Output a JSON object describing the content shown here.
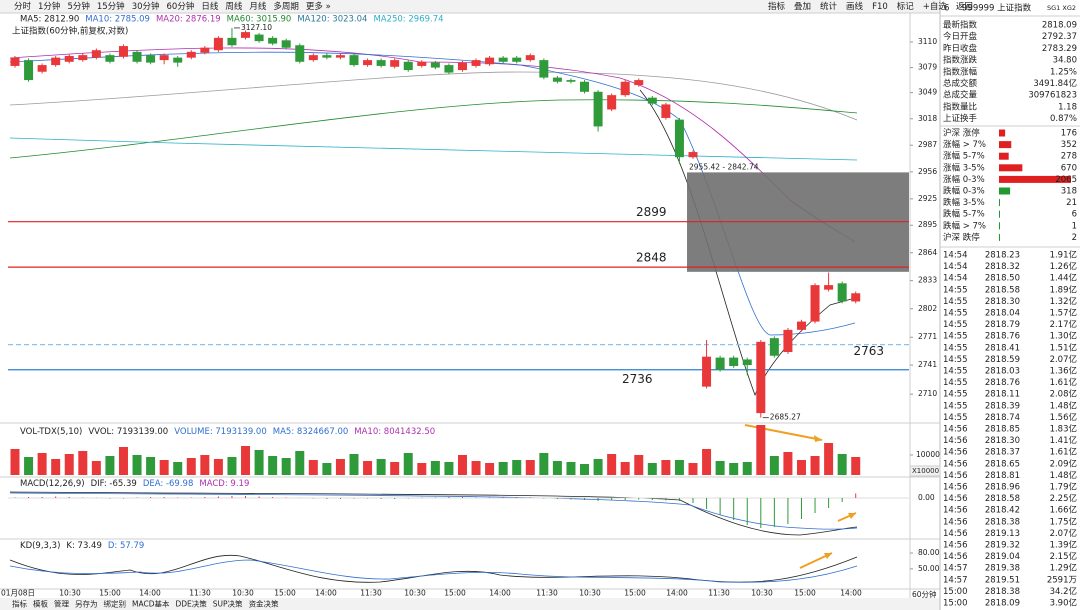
{
  "toolbar": {
    "periods": [
      "分时",
      "1分钟",
      "5分钟",
      "15分钟",
      "30分钟",
      "60分钟",
      "日线",
      "周线",
      "月线",
      "多周期",
      "更多 »"
    ],
    "selected_index": 5,
    "tools": [
      "指标",
      "叠加",
      "统计",
      "画线",
      "F10",
      "标记",
      "+自选",
      "返回"
    ]
  },
  "chart": {
    "ma_header": [
      {
        "text": "MA5: 2812.90",
        "color": "#222222"
      },
      {
        "text": "MA10: 2785.09",
        "color": "#2f6fd0"
      },
      {
        "text": "MA20: 2876.19",
        "color": "#b02fb0"
      },
      {
        "text": "MA60: 3015.90",
        "color": "#1f8a2e"
      },
      {
        "text": "MA120: 3023.04",
        "color": "#2a7a9a"
      },
      {
        "text": "MA250: 2969.74",
        "color": "#2ab0c8"
      }
    ],
    "title": "上证指数(60分钟,前复权,对数)",
    "price_axis": {
      "ylim": [
        2670,
        3140
      ],
      "log": true,
      "ticks": [
        3110,
        3079,
        3049,
        3018,
        2987,
        2956,
        2925,
        2895,
        2864,
        2833,
        2802,
        2771,
        2741,
        2710
      ]
    },
    "levels": [
      {
        "value": 2899,
        "line_color": "#e02020",
        "label_color": "#f08c30",
        "dashed": false
      },
      {
        "value": 2848,
        "line_color": "#e02020",
        "label_color": "#f08c30",
        "dashed": false
      },
      {
        "value": 2763,
        "line_color": "#8cc4ee",
        "label_color": "#3a8fd8",
        "dashed": true
      },
      {
        "value": 2736,
        "line_color": "#2f7fd0",
        "label_color": "#f08c30",
        "dashed": false
      }
    ],
    "range_box": {
      "high": 2955.42,
      "low": 2842.74,
      "label": "2955.42 - 2842.74"
    },
    "max_label": "3127.10",
    "min_label": "2685.27",
    "up_color": "#e8383a",
    "down_color": "#2f9a3a",
    "candles": [
      [
        3081,
        3093,
        3079,
        3091
      ],
      [
        3088,
        3090,
        3062,
        3064
      ],
      [
        3074,
        3084,
        3072,
        3082
      ],
      [
        3082,
        3093,
        3080,
        3091
      ],
      [
        3086,
        3095,
        3084,
        3093
      ],
      [
        3088,
        3096,
        3086,
        3094
      ],
      [
        3091,
        3102,
        3089,
        3100
      ],
      [
        3094,
        3096,
        3084,
        3086
      ],
      [
        3092,
        3107,
        3090,
        3105
      ],
      [
        3098,
        3100,
        3084,
        3086
      ],
      [
        3094,
        3096,
        3083,
        3085
      ],
      [
        3088,
        3096,
        3083,
        3094
      ],
      [
        3091,
        3093,
        3080,
        3085
      ],
      [
        3091,
        3100,
        3089,
        3098
      ],
      [
        3097,
        3105,
        3095,
        3103
      ],
      [
        3100,
        3117,
        3098,
        3115
      ],
      [
        3115,
        3127.1,
        3104,
        3106
      ],
      [
        3115,
        3124,
        3113,
        3122
      ],
      [
        3119,
        3121,
        3109,
        3111
      ],
      [
        3115,
        3117,
        3106,
        3108
      ],
      [
        3112,
        3114,
        3101,
        3103
      ],
      [
        3106,
        3108,
        3084,
        3086
      ],
      [
        3088,
        3096,
        3086,
        3094
      ],
      [
        3094,
        3096,
        3089,
        3091
      ],
      [
        3091,
        3096,
        3089,
        3094
      ],
      [
        3094,
        3096,
        3080,
        3082
      ],
      [
        3082,
        3090,
        3080,
        3088
      ],
      [
        3088,
        3090,
        3079,
        3081
      ],
      [
        3080,
        3090,
        3078,
        3088
      ],
      [
        3086,
        3088,
        3074,
        3076
      ],
      [
        3081,
        3088,
        3079,
        3086
      ],
      [
        3085,
        3087,
        3077,
        3079
      ],
      [
        3082,
        3084,
        3071,
        3073
      ],
      [
        3076,
        3087,
        3074,
        3085
      ],
      [
        3081,
        3090,
        3079,
        3088
      ],
      [
        3083,
        3093,
        3081,
        3091
      ],
      [
        3091,
        3093,
        3084,
        3086
      ],
      [
        3091,
        3093,
        3084,
        3086
      ],
      [
        3088,
        3096,
        3086,
        3094
      ],
      [
        3088,
        3090,
        3065,
        3067
      ],
      [
        3067,
        3069,
        3060,
        3062
      ],
      [
        3064,
        3066,
        3060,
        3062
      ],
      [
        3062,
        3064,
        3048,
        3050
      ],
      [
        3050,
        3052,
        3003,
        3009
      ],
      [
        3029,
        3048,
        3027,
        3046
      ],
      [
        3046,
        3064,
        3044,
        3062
      ],
      [
        3058,
        3066,
        3056,
        3064
      ],
      [
        3043,
        3045,
        3034,
        3036
      ],
      [
        3019,
        3037,
        3017,
        3035
      ],
      [
        3017,
        3019,
        2965,
        2973
      ],
      [
        2973,
        2981,
        2971,
        2979
      ],
      [
        2718,
        2768,
        2716,
        2750
      ],
      [
        2749,
        2751,
        2734,
        2736
      ],
      [
        2749,
        2751,
        2738,
        2740
      ],
      [
        2747,
        2749,
        2730,
        2741
      ],
      [
        2690,
        2768,
        2685.27,
        2766
      ],
      [
        2770,
        2772,
        2749,
        2751
      ],
      [
        2755,
        2781,
        2753,
        2779
      ],
      [
        2779,
        2790,
        2777,
        2788
      ],
      [
        2788,
        2830,
        2786,
        2828
      ],
      [
        2823,
        2842,
        2821,
        2828
      ],
      [
        2830,
        2832,
        2808,
        2810
      ],
      [
        2810,
        2821,
        2808,
        2819
      ]
    ],
    "x_labels": [
      "01月08日",
      "10:30",
      "15:00",
      "14:00",
      "11:30",
      "10:30",
      "15:00",
      "14:00",
      "11:30",
      "10:30",
      "15:00",
      "14:00",
      "11:30",
      "10:30",
      "15:00",
      "14:00",
      "11:30",
      "10:30",
      "15:00",
      "14:00"
    ]
  },
  "volume": {
    "header": [
      {
        "text": "VOL-TDX(5,10)",
        "color": "#222222"
      },
      {
        "text": "VVOL: 7193139.00",
        "color": "#222222"
      },
      {
        "text": "VOLUME: 7193139.00",
        "color": "#2f6fd0"
      },
      {
        "text": "MA5: 8324667.00",
        "color": "#2f6fd0"
      },
      {
        "text": "MA10: 8041432.50",
        "color": "#b02fb0"
      }
    ],
    "ylim": [
      0,
      25000
    ],
    "ticks": [
      10000
    ],
    "multiplier": "X10000",
    "values": [
      13000,
      9000,
      11000,
      8000,
      10500,
      12000,
      7000,
      9500,
      14000,
      10000,
      9000,
      7500,
      6500,
      8500,
      10000,
      8000,
      9000,
      14500,
      12500,
      9500,
      8500,
      12000,
      7500,
      6000,
      8000,
      10500,
      7000,
      8000,
      6500,
      11000,
      6000,
      7000,
      6500,
      10000,
      7000,
      6000,
      6500,
      7500,
      7500,
      11000,
      7000,
      6500,
      5500,
      8000,
      10500,
      6500,
      10000,
      6000,
      7500,
      7500,
      6000,
      13000,
      7000,
      6000,
      6500,
      25000,
      9500,
      11500,
      7500,
      9500,
      16000,
      10500,
      9000
    ]
  },
  "macd": {
    "header": [
      {
        "text": "MACD(12,26,9)",
        "color": "#222222"
      },
      {
        "text": "DIF: -65.39",
        "color": "#222222"
      },
      {
        "text": "DEA: -69.98",
        "color": "#2f6fd0"
      },
      {
        "text": "MACD: 9.19",
        "color": "#b02fb0"
      }
    ],
    "ylim": [
      -80,
      20
    ],
    "ticks": [
      {
        "value": 0,
        "label": "0.00"
      }
    ],
    "values": [
      1,
      2,
      2,
      3,
      2,
      1,
      0.5,
      -1,
      -1,
      1,
      2,
      2,
      1,
      1,
      2,
      3,
      4,
      4,
      3,
      2,
      1,
      0.5,
      -1,
      -2,
      -2,
      -1,
      -1,
      -2,
      -2,
      -1,
      1,
      1,
      2,
      2,
      1,
      1,
      2,
      2,
      1,
      -1,
      -2,
      -3,
      -4,
      -6,
      -5,
      -4,
      -3,
      -4,
      -5,
      -6,
      -10,
      -22,
      -34,
      -44,
      -54,
      -60,
      -58,
      -52,
      -42,
      -30,
      -20,
      -8,
      9.19
    ]
  },
  "kd": {
    "header": [
      {
        "text": "KD(9,3,3)",
        "color": "#222222"
      },
      {
        "text": "K: 73.49",
        "color": "#222222"
      },
      {
        "text": "D: 57.79",
        "color": "#2f6fd0"
      }
    ],
    "ylim": [
      10,
      90
    ],
    "ticks": [
      {
        "value": 80,
        "label": "80.00"
      },
      {
        "value": 50,
        "label": "50.00"
      }
    ]
  },
  "bottom": {
    "tabs": [
      "指标",
      "模板",
      "管理",
      "另存为",
      "绑定别",
      "MACD基本",
      "DDE决策",
      "SUP决策",
      "资金决策"
    ],
    "selected_index": 2,
    "period": "60分钟"
  },
  "quote": {
    "prefix": "6",
    "title": "999999 上证指数",
    "badge": "SG1 XG2",
    "rows": [
      {
        "label": "最新指数",
        "value": "2818.09",
        "color": "#e02020"
      },
      {
        "label": "今日开盘",
        "value": "2792.37",
        "color": "#e02020"
      },
      {
        "label": "昨日收盘",
        "value": "2783.29",
        "color": "#222222"
      },
      {
        "label": "指数涨跌",
        "value": "34.80",
        "color": "#e02020"
      },
      {
        "label": "指数涨幅",
        "value": "1.25%",
        "color": "#e02020"
      },
      {
        "label": "总成交额",
        "value": "3491.84亿",
        "color": "#222222"
      },
      {
        "label": "总成交量",
        "value": "309761823",
        "color": "#222222"
      },
      {
        "label": "指数量比",
        "value": "1.18",
        "color": "#e02020"
      },
      {
        "label": "上证换手",
        "value": "0.87%",
        "color": "#222222"
      }
    ],
    "breadth": [
      {
        "label": "沪深 涨停",
        "value": 176,
        "color": "#e02020"
      },
      {
        "label": "涨幅 > 7%",
        "value": 352,
        "color": "#e02020"
      },
      {
        "label": "涨幅 5-7%",
        "value": 278,
        "color": "#e02020"
      },
      {
        "label": "涨幅 3-5%",
        "value": 670,
        "color": "#e02020"
      },
      {
        "label": "涨幅 0-3%",
        "value": 2065,
        "color": "#e02020"
      },
      {
        "label": "跌幅 0-3%",
        "value": 318,
        "color": "#1f9a2e"
      },
      {
        "label": "跌幅 3-5%",
        "value": 21,
        "color": "#1f9a2e"
      },
      {
        "label": "跌幅 5-7%",
        "value": 6,
        "color": "#1f9a2e"
      },
      {
        "label": "跌幅 > 7%",
        "value": 1,
        "color": "#1f9a2e"
      },
      {
        "label": "沪深 跌停",
        "value": 2,
        "color": "#1f9a2e"
      }
    ],
    "trades": [
      [
        "14:54",
        "2818.23",
        "1.91亿"
      ],
      [
        "14:54",
        "2818.32",
        "1.26亿"
      ],
      [
        "14:54",
        "2818.50",
        "1.44亿"
      ],
      [
        "14:55",
        "2818.58",
        "1.89亿"
      ],
      [
        "14:55",
        "2818.30",
        "1.32亿"
      ],
      [
        "14:55",
        "2818.04",
        "1.57亿"
      ],
      [
        "14:55",
        "2818.79",
        "2.17亿"
      ],
      [
        "14:55",
        "2818.76",
        "1.30亿"
      ],
      [
        "14:55",
        "2818.41",
        "1.51亿"
      ],
      [
        "14:55",
        "2818.59",
        "2.07亿"
      ],
      [
        "14:55",
        "2818.03",
        "1.36亿"
      ],
      [
        "14:55",
        "2818.76",
        "1.61亿"
      ],
      [
        "14:55",
        "2818.11",
        "2.08亿"
      ],
      [
        "14:55",
        "2818.39",
        "1.48亿"
      ],
      [
        "14:55",
        "2818.74",
        "1.56亿"
      ],
      [
        "14:56",
        "2818.85",
        "1.83亿"
      ],
      [
        "14:56",
        "2818.30",
        "1.41亿"
      ],
      [
        "14:56",
        "2818.37",
        "1.61亿"
      ],
      [
        "14:56",
        "2818.65",
        "2.09亿"
      ],
      [
        "14:56",
        "2818.81",
        "1.48亿"
      ],
      [
        "14:56",
        "2818.96",
        "1.79亿"
      ],
      [
        "14:56",
        "2818.58",
        "2.25亿"
      ],
      [
        "14:56",
        "2818.42",
        "1.66亿"
      ],
      [
        "14:56",
        "2818.38",
        "1.75亿"
      ],
      [
        "14:56",
        "2819.13",
        "2.07亿"
      ],
      [
        "14:56",
        "2819.32",
        "1.39亿"
      ],
      [
        "14:56",
        "2819.04",
        "2.15亿"
      ],
      [
        "14:57",
        "2819.38",
        "1.29亿"
      ],
      [
        "14:57",
        "2819.51",
        "2591万"
      ],
      [
        "15:00",
        "2818.38",
        "34.2亿"
      ],
      [
        "15:00",
        "2818.09",
        "3.90亿"
      ]
    ]
  }
}
